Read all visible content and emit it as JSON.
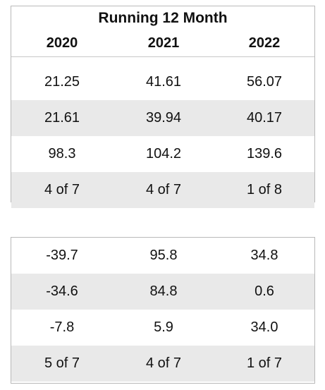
{
  "top_table": {
    "title": "Running 12 Month",
    "headers": [
      "2020",
      "2021",
      "2022"
    ],
    "rows": [
      [
        "21.25",
        "41.61",
        "56.07"
      ],
      [
        "21.61",
        "39.94",
        "40.17"
      ],
      [
        "98.3",
        "104.2",
        "139.6"
      ],
      [
        "4 of 7",
        "4 of 7",
        "1 of 8"
      ]
    ]
  },
  "bottom_table": {
    "rows": [
      [
        "-39.7",
        "95.8",
        "34.8"
      ],
      [
        "-34.6",
        "84.8",
        "0.6"
      ],
      [
        "-7.8",
        "5.9",
        "34.0"
      ],
      [
        "5 of 7",
        "4 of 7",
        "1 of 7"
      ]
    ]
  }
}
